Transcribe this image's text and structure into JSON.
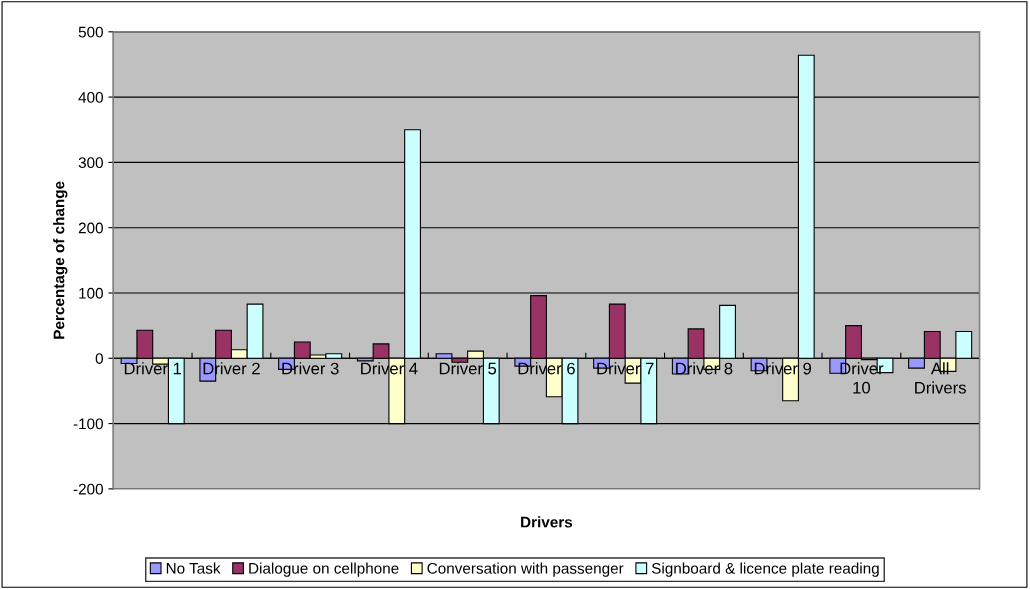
{
  "chart_data": {
    "type": "bar",
    "xlabel": "Drivers",
    "ylabel": "Percentage of change",
    "categories": [
      "Driver 1",
      "Driver 2",
      "Driver 3",
      "Driver 4",
      "Driver 5",
      "Driver 6",
      "Driver 7",
      "Driver 8",
      "Driver 9",
      "Driver 10",
      "All Drivers"
    ],
    "series": [
      {
        "name": "No Task",
        "color": "#9999ff",
        "values": [
          -8,
          -35,
          -17,
          -4,
          7,
          -12,
          -15,
          -24,
          -19,
          -23,
          -15
        ]
      },
      {
        "name": "Dialogue on cellphone",
        "color": "#993366",
        "values": [
          43,
          43,
          25,
          22,
          -6,
          96,
          83,
          45,
          null,
          50,
          41
        ]
      },
      {
        "name": "Conversation with passenger",
        "color": "#ffffcc",
        "values": [
          -9,
          13,
          5,
          -100,
          11,
          -59,
          -38,
          -17,
          -65,
          -2,
          -20
        ]
      },
      {
        "name": "Signboard & licence plate reading",
        "color": "#ccffff",
        "values": [
          -100,
          83,
          7,
          350,
          -100,
          -100,
          -100,
          81,
          464,
          -22,
          41
        ]
      }
    ],
    "ylim": [
      -200,
      500
    ],
    "yticks": [
      -200,
      -100,
      0,
      100,
      200,
      300,
      400,
      500
    ],
    "grid": "y",
    "legend": "bottom"
  }
}
